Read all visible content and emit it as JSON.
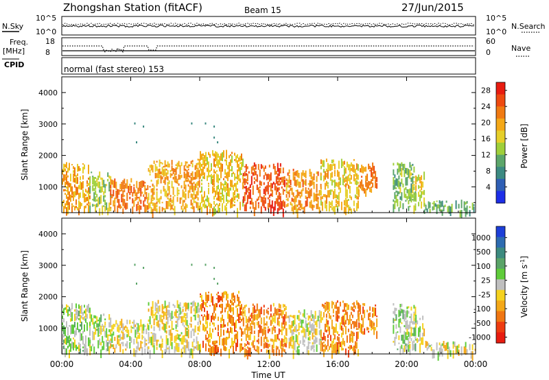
{
  "header": {
    "station": "Zhongshan Station (fitACF)",
    "beam": "Beam 15",
    "date": "27/Jun/2015"
  },
  "top_panels": {
    "nsky_label": "N.Sky",
    "nsky_ticks": [
      "10^5",
      "10^0"
    ],
    "nsearch_label": "N.Search",
    "nsearch_ticks": [
      "10^5",
      "10^0"
    ],
    "freq_label": "Freq.",
    "freq_unit": "[MHz]",
    "freq_ticks": [
      "18",
      "8"
    ],
    "nave_label": "Nave",
    "nave_ticks": [
      "60",
      "0"
    ],
    "cpid_label": "CPID",
    "cpid_text": "normal (fast stereo) 153"
  },
  "axes": {
    "ylabel": "Slant Range [km]",
    "xlabel": "Time UT",
    "y_ticks": [
      "1000",
      "2000",
      "3000",
      "4000"
    ],
    "x_ticks": [
      "00:00",
      "04:00",
      "08:00",
      "12:00",
      "16:00",
      "20:00",
      "00:00"
    ]
  },
  "colorbars": {
    "power": {
      "label": "Power [dB]",
      "tick_labels": [
        "4",
        "8",
        "12",
        "16",
        "20",
        "24",
        "28"
      ],
      "colors": [
        "#1d2ee8",
        "#2f5fb5",
        "#3c8a82",
        "#5ca66a",
        "#9fcf3a",
        "#e6cf2a",
        "#f4a818",
        "#f07a12",
        "#ee4a10",
        "#e81c10"
      ]
    },
    "velocity": {
      "label": "Velocity [m s",
      "label_sup": "-1",
      "label_end": "]",
      "tick_labels": [
        "1000",
        "500",
        "100",
        "25",
        "-25",
        "-100",
        "-500",
        "-1000"
      ],
      "colors": [
        "#1d3fd8",
        "#2d6bb0",
        "#3c8a7f",
        "#5aa468",
        "#5fcc3a",
        "#bfbfbf",
        "#f5d21f",
        "#f4a818",
        "#f07612",
        "#ee3c10",
        "#e81c10"
      ]
    }
  },
  "chart_data": [
    {
      "type": "heatmap",
      "title": "Power",
      "xlabel": "Time UT",
      "ylabel": "Slant Range [km]",
      "xlim": [
        0,
        24
      ],
      "ylim": [
        180,
        4500
      ],
      "colorbar_range": [
        0,
        30
      ],
      "clusters": [
        {
          "t": [
            0.0,
            1.6
          ],
          "r": [
            300,
            1800
          ],
          "value": 20
        },
        {
          "t": [
            1.6,
            2.8
          ],
          "r": [
            300,
            1500
          ],
          "value": 14
        },
        {
          "t": [
            2.8,
            5.0
          ],
          "r": [
            300,
            1300
          ],
          "value": 24
        },
        {
          "t": [
            5.0,
            8.0
          ],
          "r": [
            300,
            1900
          ],
          "value": 20
        },
        {
          "t": [
            8.0,
            10.5
          ],
          "r": [
            300,
            2200
          ],
          "value": 18
        },
        {
          "t": [
            10.5,
            13.0
          ],
          "r": [
            300,
            1800
          ],
          "value": 26
        },
        {
          "t": [
            13.0,
            15.0
          ],
          "r": [
            300,
            1600
          ],
          "value": 22
        },
        {
          "t": [
            15.0,
            17.2
          ],
          "r": [
            300,
            1900
          ],
          "value": 18
        },
        {
          "t": [
            17.2,
            18.3
          ],
          "r": [
            900,
            1800
          ],
          "value": 22
        },
        {
          "t": [
            19.2,
            20.5
          ],
          "r": [
            300,
            1800
          ],
          "value": 12
        },
        {
          "t": [
            20.5,
            21.0
          ],
          "r": [
            500,
            1500
          ],
          "value": 16
        },
        {
          "t": [
            21.0,
            24.0
          ],
          "r": [
            250,
            600
          ],
          "value": 10
        }
      ]
    },
    {
      "type": "heatmap",
      "title": "Velocity",
      "xlabel": "Time UT",
      "ylabel": "Slant Range [km]",
      "xlim": [
        0,
        24
      ],
      "ylim": [
        180,
        4500
      ],
      "colorbar_range": [
        -1000,
        1000
      ],
      "clusters": [
        {
          "t": [
            0.0,
            1.6
          ],
          "r": [
            300,
            1800
          ],
          "value": 100
        },
        {
          "t": [
            1.6,
            2.8
          ],
          "r": [
            300,
            1500
          ],
          "value": 25
        },
        {
          "t": [
            2.8,
            5.0
          ],
          "r": [
            300,
            1300
          ],
          "value": -100
        },
        {
          "t": [
            5.0,
            8.0
          ],
          "r": [
            300,
            1900
          ],
          "value": -100
        },
        {
          "t": [
            8.0,
            10.5
          ],
          "r": [
            300,
            2200
          ],
          "value": -500
        },
        {
          "t": [
            10.5,
            13.0
          ],
          "r": [
            300,
            1800
          ],
          "value": -500
        },
        {
          "t": [
            13.0,
            15.0
          ],
          "r": [
            300,
            1600
          ],
          "value": -100
        },
        {
          "t": [
            15.0,
            17.2
          ],
          "r": [
            300,
            1900
          ],
          "value": -500
        },
        {
          "t": [
            17.2,
            18.3
          ],
          "r": [
            900,
            1800
          ],
          "value": -500
        },
        {
          "t": [
            19.2,
            20.5
          ],
          "r": [
            300,
            1800
          ],
          "value": 100
        },
        {
          "t": [
            20.5,
            21.0
          ],
          "r": [
            500,
            1500
          ],
          "value": -100
        },
        {
          "t": [
            21.0,
            24.0
          ],
          "r": [
            250,
            600
          ],
          "value": -100
        }
      ]
    }
  ]
}
